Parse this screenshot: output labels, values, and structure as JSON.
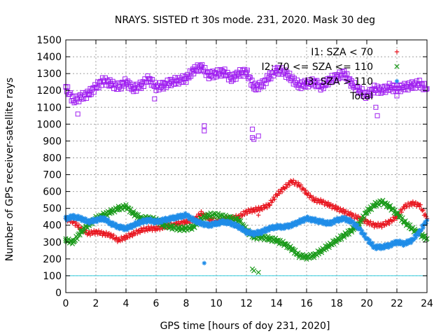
{
  "chart_data": {
    "type": "scatter",
    "title": "NRAYS. SISTED rt 30s mode. 231, 2020. Mask 30 deg",
    "xlabel": "GPS time [hours of doy 231, 2020]",
    "ylabel": "Number of GPS receiver-satellite rays",
    "xlim": [
      0,
      24
    ],
    "ylim": [
      0,
      1500
    ],
    "xticks": [
      0,
      2,
      4,
      6,
      8,
      10,
      12,
      14,
      16,
      18,
      20,
      22,
      24
    ],
    "yticks": [
      0,
      100,
      200,
      300,
      400,
      500,
      600,
      700,
      800,
      900,
      1000,
      1100,
      1200,
      1300,
      1400,
      1500
    ],
    "grid": true,
    "legend_position": "top-right",
    "reference_line": {
      "y": 100,
      "color": "#33ccdd"
    },
    "series": [
      {
        "name": "I1: SZA < 70",
        "legend_label": "I1: SZA < 70",
        "marker": "+",
        "color": "#e8141e",
        "x": [
          0,
          0.5,
          1,
          1.5,
          2,
          2.5,
          3,
          3.5,
          4,
          4.5,
          5,
          5.5,
          6,
          6.5,
          7,
          7.5,
          8,
          8.5,
          9,
          9.5,
          10,
          10.5,
          11,
          11.5,
          12,
          12.5,
          13,
          13.5,
          14,
          14.5,
          15,
          15.5,
          16,
          16.5,
          17,
          17.5,
          18,
          18.5,
          19,
          19.5,
          20,
          20.5,
          21,
          21.5,
          22,
          22.5,
          23,
          23.5,
          24
        ],
        "y": [
          440,
          420,
          380,
          350,
          360,
          350,
          340,
          310,
          330,
          350,
          370,
          380,
          380,
          390,
          400,
          410,
          420,
          430,
          470,
          440,
          420,
          430,
          440,
          450,
          480,
          490,
          500,
          520,
          580,
          620,
          660,
          640,
          590,
          550,
          540,
          520,
          500,
          480,
          460,
          440,
          420,
          400,
          400,
          420,
          450,
          510,
          530,
          520,
          440
        ]
      },
      {
        "name": "I2: 70 <= SZA <= 110",
        "legend_label": "I2: 70 <= SZA <= 110",
        "marker": "x",
        "color": "#1a9a1a",
        "x": [
          0,
          0.5,
          1,
          1.5,
          2,
          2.5,
          3,
          3.5,
          4,
          4.5,
          5,
          5.5,
          6,
          6.5,
          7,
          7.5,
          8,
          8.5,
          9,
          9.5,
          10,
          10.5,
          11,
          11.5,
          12,
          12.5,
          13,
          13.5,
          14,
          14.5,
          15,
          15.5,
          16,
          16.5,
          17,
          17.5,
          18,
          18.5,
          19,
          19.5,
          20,
          20.5,
          21,
          21.5,
          22,
          22.5,
          23,
          23.5,
          24
        ],
        "y": [
          310,
          300,
          360,
          400,
          440,
          460,
          480,
          500,
          510,
          470,
          440,
          440,
          430,
          400,
          390,
          380,
          380,
          390,
          440,
          460,
          460,
          450,
          440,
          430,
          370,
          330,
          330,
          320,
          310,
          290,
          260,
          220,
          210,
          220,
          250,
          280,
          310,
          340,
          370,
          410,
          480,
          520,
          540,
          510,
          470,
          420,
          380,
          350,
          320
        ]
      },
      {
        "name": "I3: SZA > 110",
        "legend_label": "I3: SZA > 110",
        "marker": "*",
        "color": "#1e8ce8",
        "x": [
          0,
          0.5,
          1,
          1.5,
          2,
          2.5,
          3,
          3.5,
          4,
          4.5,
          5,
          5.5,
          6,
          6.5,
          7,
          7.5,
          8,
          8.5,
          9,
          9.5,
          10,
          10.5,
          11,
          11.5,
          12,
          12.5,
          13,
          13.5,
          14,
          14.5,
          15,
          15.5,
          16,
          16.5,
          17,
          17.5,
          18,
          18.5,
          19,
          19.5,
          20,
          20.5,
          21,
          21.5,
          22,
          22.5,
          23,
          23.5,
          24
        ],
        "y": [
          440,
          450,
          440,
          420,
          430,
          440,
          410,
          390,
          380,
          400,
          420,
          430,
          420,
          430,
          440,
          450,
          460,
          430,
          410,
          400,
          410,
          420,
          410,
          390,
          360,
          350,
          360,
          380,
          390,
          390,
          400,
          420,
          440,
          430,
          420,
          410,
          430,
          440,
          420,
          380,
          320,
          270,
          270,
          280,
          300,
          290,
          310,
          360,
          430
        ]
      },
      {
        "name": "Total",
        "legend_label": "Total",
        "marker": "square",
        "color": "#a020f0",
        "x": [
          0,
          0.5,
          1,
          1.5,
          2,
          2.5,
          3,
          3.5,
          4,
          4.5,
          5,
          5.5,
          6,
          6.5,
          7,
          7.5,
          8,
          8.5,
          9,
          9.5,
          10,
          10.5,
          11,
          11.5,
          12,
          12.5,
          13,
          13.5,
          14,
          14.5,
          15,
          15.5,
          16,
          16.5,
          17,
          17.5,
          18,
          18.5,
          19,
          19.5,
          20,
          20.5,
          21,
          21.5,
          22,
          22.5,
          23,
          23.5,
          24
        ],
        "y": [
          1220,
          1140,
          1160,
          1180,
          1220,
          1260,
          1240,
          1220,
          1250,
          1210,
          1230,
          1270,
          1220,
          1230,
          1250,
          1260,
          1270,
          1320,
          1340,
          1290,
          1300,
          1310,
          1270,
          1300,
          1310,
          1220,
          1230,
          1280,
          1320,
          1310,
          1270,
          1230,
          1240,
          1250,
          1220,
          1260,
          1280,
          1300,
          1240,
          1200,
          1170,
          1210,
          1200,
          1220,
          1210,
          1220,
          1230,
          1240,
          1210
        ]
      }
    ],
    "outliers": [
      {
        "series": "Total",
        "x": 0.8,
        "y": 1060
      },
      {
        "series": "Total",
        "x": 5.9,
        "y": 1150
      },
      {
        "series": "Total",
        "x": 9.2,
        "y": 990
      },
      {
        "series": "Total",
        "x": 9.2,
        "y": 960
      },
      {
        "series": "Total",
        "x": 12.4,
        "y": 970
      },
      {
        "series": "Total",
        "x": 12.4,
        "y": 920
      },
      {
        "series": "Total",
        "x": 12.5,
        "y": 910
      },
      {
        "series": "Total",
        "x": 12.8,
        "y": 930
      },
      {
        "series": "Total",
        "x": 20.6,
        "y": 1100
      },
      {
        "series": "Total",
        "x": 20.7,
        "y": 1050
      },
      {
        "series": "I3: SZA > 110",
        "x": 9.2,
        "y": 175
      },
      {
        "series": "I2: 70 <= SZA <= 110",
        "x": 12.4,
        "y": 140
      },
      {
        "series": "I2: 70 <= SZA <= 110",
        "x": 12.5,
        "y": 130
      },
      {
        "series": "I2: 70 <= SZA <= 110",
        "x": 12.8,
        "y": 120
      },
      {
        "series": "I1: SZA < 70",
        "x": 12.8,
        "y": 460
      }
    ]
  }
}
